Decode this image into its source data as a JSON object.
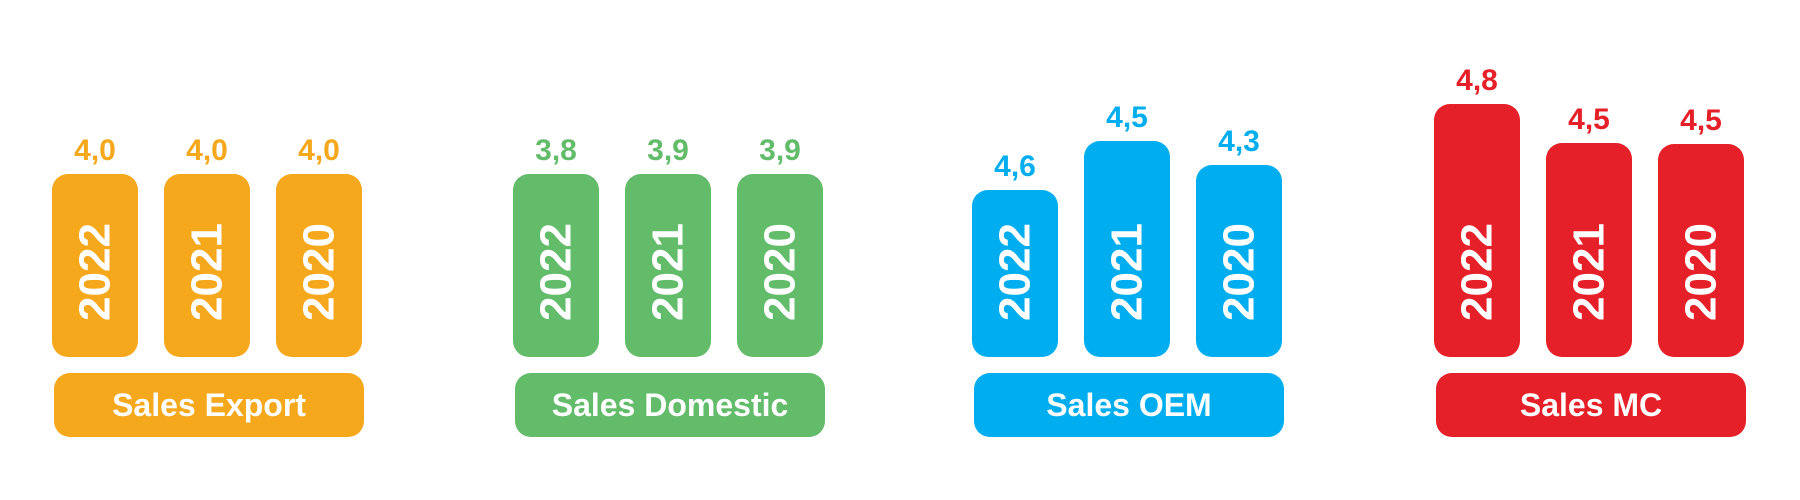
{
  "chart_data": [
    {
      "type": "bar",
      "label": "Sales Export",
      "color": "#F5A81C",
      "categories": [
        "2022",
        "2021",
        "2020"
      ],
      "values": [
        4.0,
        4.0,
        4.0
      ],
      "value_labels": [
        "4,0",
        "4,0",
        "4,0"
      ]
    },
    {
      "type": "bar",
      "label": "Sales  Domestic",
      "color": "#62BC6A",
      "categories": [
        "2022",
        "2021",
        "2020"
      ],
      "values": [
        3.8,
        3.9,
        3.9
      ],
      "value_labels": [
        "3,8",
        "3,9",
        "3,9"
      ]
    },
    {
      "type": "bar",
      "label": "Sales OEM",
      "color": "#00AEEF",
      "categories": [
        "2022",
        "2021",
        "2020"
      ],
      "values": [
        4.6,
        4.5,
        4.3
      ],
      "value_labels": [
        "4,6",
        "4,5",
        "4,3"
      ]
    },
    {
      "type": "bar",
      "label": "Sales MC",
      "color": "#E62028",
      "categories": [
        "2022",
        "2021",
        "2020"
      ],
      "values": [
        4.8,
        4.5,
        4.5
      ],
      "value_labels": [
        "4,8",
        "4,5",
        "4,5"
      ]
    }
  ]
}
